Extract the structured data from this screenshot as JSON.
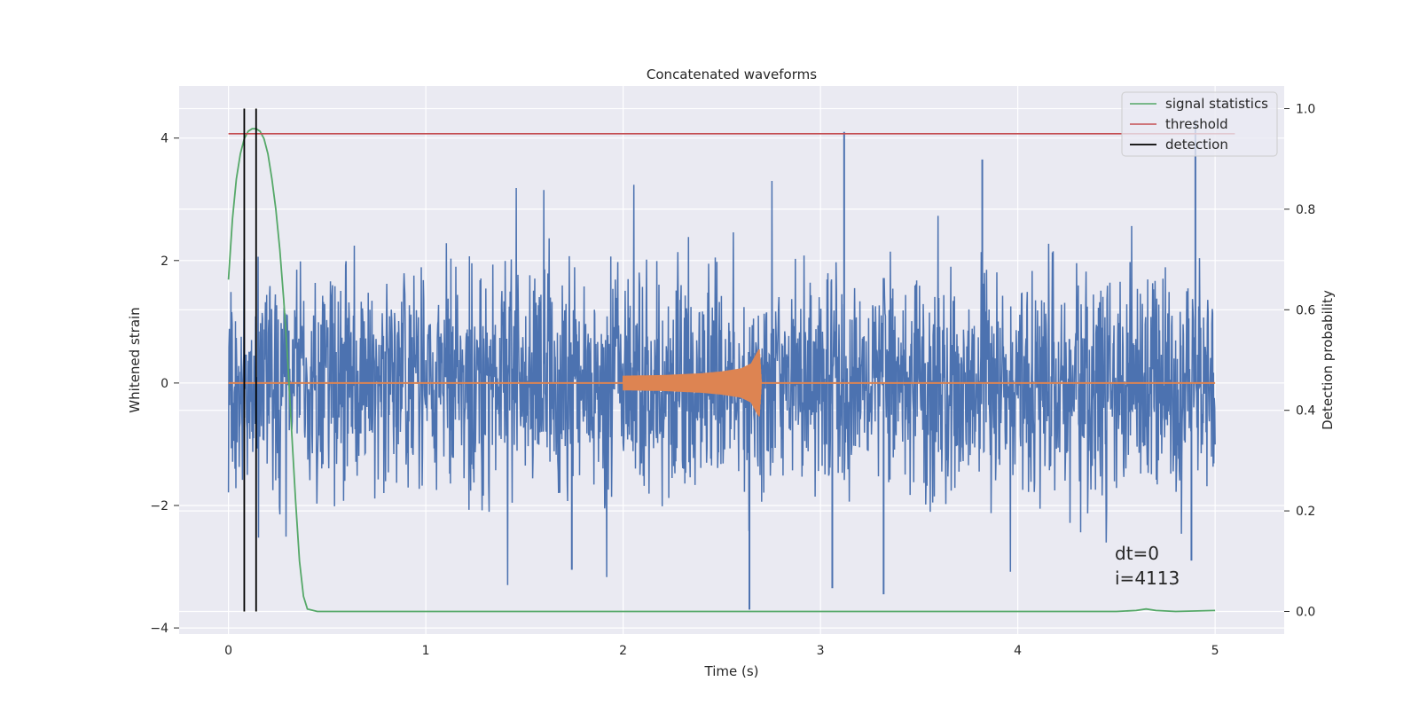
{
  "chart_data": {
    "type": "line",
    "title": "Concatenated waveforms",
    "xlabel": "Time (s)",
    "ylabel": "Whitened strain",
    "y2label": "Detection probability",
    "xlim": [
      -0.25,
      5.35
    ],
    "ylim": [
      -4.1,
      4.85
    ],
    "y2lim": [
      -0.045,
      1.045
    ],
    "x_ticks": [
      0,
      1,
      2,
      3,
      4,
      5
    ],
    "y_ticks": [
      -4,
      -2,
      0,
      2,
      4
    ],
    "y2_ticks": [
      0.0,
      0.2,
      0.4,
      0.6,
      0.8,
      1.0
    ],
    "grid": true,
    "legend_position": "top-right",
    "legend": [
      {
        "label": "signal statistics",
        "color": "#55a868"
      },
      {
        "label": "threshold",
        "color": "#c44e52"
      },
      {
        "label": "detection",
        "color": "#000000"
      }
    ],
    "series": [
      {
        "color": "#4c72b0",
        "axis": "left",
        "x_range": [
          0,
          5
        ],
        "typical_band": [
          -1.6,
          1.6
        ],
        "spikes": [
          {
            "x": 3.12,
            "y": 4.1
          },
          {
            "x": 4.9,
            "y": 4.3
          },
          {
            "x": 3.82,
            "y": 3.65
          },
          {
            "x": 2.64,
            "y": -3.7
          },
          {
            "x": 3.32,
            "y": -3.45
          },
          {
            "x": 3.06,
            "y": -3.35
          },
          {
            "x": 1.74,
            "y": -3.05
          },
          {
            "x": 4.88,
            "y": -2.9
          }
        ]
      },
      {
        "color": "#dd8452",
        "axis": "left",
        "x": [
          2.0,
          2.2,
          2.4,
          2.5,
          2.6,
          2.65,
          2.68,
          2.69,
          2.7
        ],
        "amplitude": [
          0.12,
          0.13,
          0.16,
          0.19,
          0.24,
          0.32,
          0.5,
          0.55,
          0.02
        ]
      },
      {
        "name": "signal statistics",
        "color": "#55a868",
        "axis": "right",
        "x": [
          0.0,
          0.02,
          0.04,
          0.06,
          0.08,
          0.1,
          0.12,
          0.14,
          0.16,
          0.18,
          0.2,
          0.22,
          0.24,
          0.26,
          0.28,
          0.3,
          0.32,
          0.34,
          0.36,
          0.38,
          0.4,
          0.45,
          0.5,
          1.0,
          2.0,
          3.0,
          4.0,
          4.5,
          4.6,
          4.65,
          4.7,
          4.8,
          5.0
        ],
        "y": [
          0.66,
          0.78,
          0.86,
          0.91,
          0.94,
          0.955,
          0.96,
          0.96,
          0.955,
          0.94,
          0.91,
          0.86,
          0.8,
          0.72,
          0.62,
          0.5,
          0.36,
          0.22,
          0.1,
          0.03,
          0.005,
          0.0,
          0.0,
          0.0,
          0.0,
          0.0,
          0.0,
          0.0,
          0.002,
          0.005,
          0.002,
          0.0,
          0.002
        ]
      },
      {
        "name": "threshold",
        "color": "#c44e52",
        "axis": "right",
        "x": [
          0,
          5.1
        ],
        "y": [
          0.95,
          0.95
        ]
      },
      {
        "name": "detection",
        "color": "#000000",
        "axis": "right",
        "vlines": [
          0.08,
          0.14
        ],
        "ymin": 0.0,
        "ymax": 1.0
      }
    ],
    "annotations": [
      "dt=0",
      "i=4113"
    ]
  }
}
